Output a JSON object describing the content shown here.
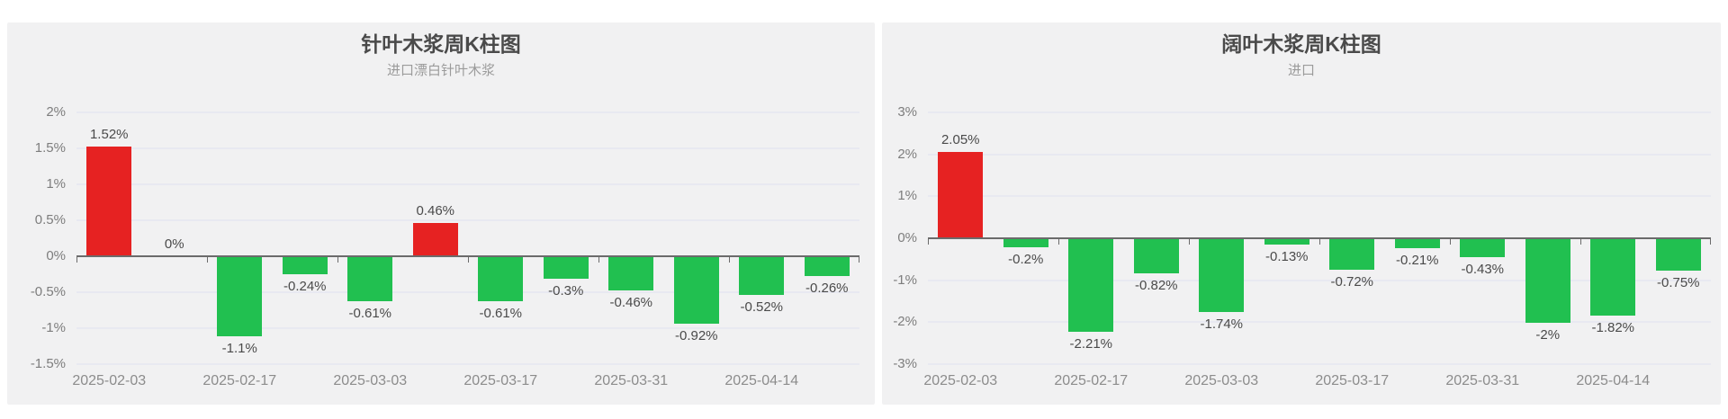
{
  "colors": {
    "positive_bar": "#e62222",
    "negative_bar": "#21c050",
    "card_background": "#f1f1f2",
    "gridline": "#e8e9f1",
    "axis_line": "#6b6b6b",
    "value_label": "#4a4a4a",
    "y_axis_label": "#7d7d7d",
    "x_axis_label": "#8c8c8c"
  },
  "chart_data": [
    {
      "type": "bar",
      "title": "针叶木浆周K柱图",
      "subtitle": "进口漂白针叶木浆",
      "ylim": [
        -1.5,
        2
      ],
      "y_tick_step": 0.5,
      "y_tick_labels": [
        "2%",
        "1.5%",
        "1%",
        "0.5%",
        "0%",
        "-0.5%",
        "-1%",
        "-1.5%"
      ],
      "grid": true,
      "legend": null,
      "values": [
        1.52,
        0,
        -1.1,
        -0.24,
        -0.61,
        0.46,
        -0.61,
        -0.3,
        -0.46,
        -0.92,
        -0.52,
        -0.26
      ],
      "value_labels": [
        "1.52%",
        "0%",
        "-1.1%",
        "-0.24%",
        "-0.61%",
        "0.46%",
        "-0.61%",
        "-0.3%",
        "-0.46%",
        "-0.92%",
        "-0.52%",
        "-0.26%"
      ],
      "x_tick_labels": [
        "2025-02-03",
        "2025-02-17",
        "2025-03-03",
        "2025-03-17",
        "2025-03-31",
        "2025-04-14"
      ]
    },
    {
      "type": "bar",
      "title": "阔叶木浆周K柱图",
      "subtitle": "进口",
      "ylim": [
        -3,
        3
      ],
      "y_tick_step": 1,
      "y_tick_labels": [
        "3%",
        "2%",
        "1%",
        "0%",
        "-1%",
        "-2%",
        "-3%"
      ],
      "grid": true,
      "legend": null,
      "values": [
        2.05,
        -0.2,
        -2.21,
        -0.82,
        -1.74,
        -0.13,
        -0.72,
        -0.21,
        -0.43,
        -2,
        -1.82,
        -0.75
      ],
      "value_labels": [
        "2.05%",
        "-0.2%",
        "-2.21%",
        "-0.82%",
        "-1.74%",
        "-0.13%",
        "-0.72%",
        "-0.21%",
        "-0.43%",
        "-2%",
        "-1.82%",
        "-0.75%"
      ],
      "x_tick_labels": [
        "2025-02-03",
        "2025-02-17",
        "2025-03-03",
        "2025-03-17",
        "2025-03-31",
        "2025-04-14"
      ]
    }
  ]
}
